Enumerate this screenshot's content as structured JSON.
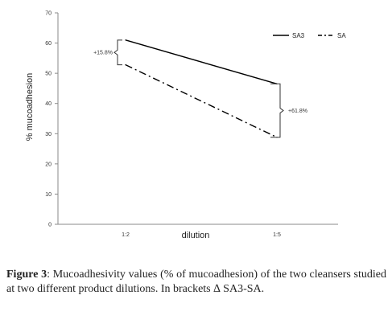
{
  "chart_data": {
    "type": "line",
    "categories": [
      "1:2",
      "1:5"
    ],
    "series": [
      {
        "name": "SA3",
        "values": [
          61,
          46.5
        ],
        "color": "#000000",
        "style": "solid"
      },
      {
        "name": "SA",
        "values": [
          52.8,
          28.8
        ],
        "color": "#000000",
        "style": "dash-dot"
      }
    ],
    "title": "",
    "xlabel": "dilution",
    "ylabel": "% mucoadhesion",
    "ylim": [
      0,
      70
    ],
    "yticks": [
      0,
      10,
      20,
      30,
      40,
      50,
      60,
      70
    ],
    "grid": false,
    "legend": "top-right",
    "annotations": [
      {
        "text": "+15.8%",
        "category": "1:2",
        "range": [
          52.8,
          61
        ]
      },
      {
        "text": "+61.8%",
        "category": "1:5",
        "range": [
          28.8,
          46.5
        ]
      }
    ]
  },
  "caption": {
    "label": "Figure 3",
    "text": ": Mucoadhesivity values (% of mucoadhesion) of the two cleansers studied at two different product dilutions. In brackets ∆ SA3-SA."
  }
}
